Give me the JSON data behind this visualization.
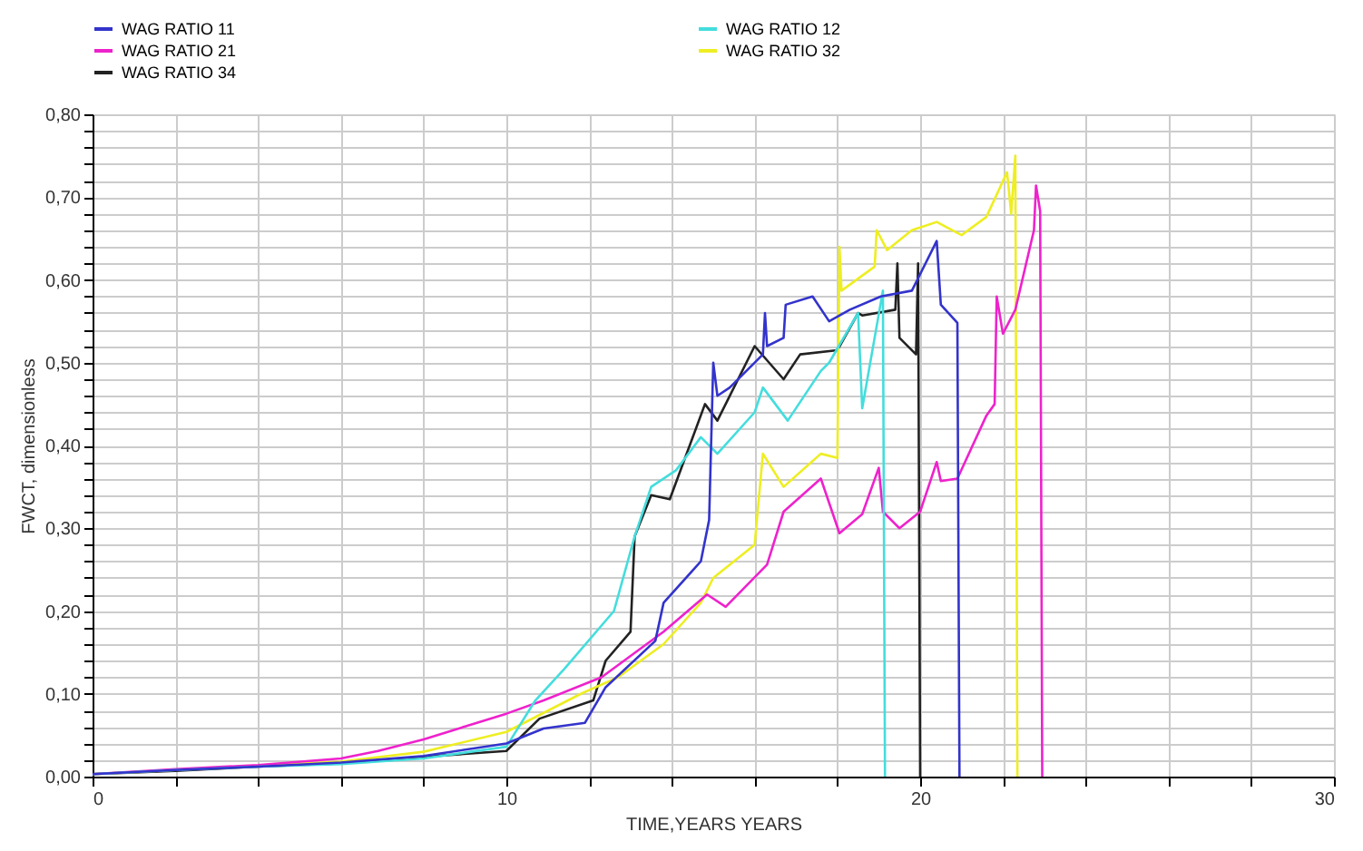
{
  "chart_data": {
    "type": "line",
    "xlabel": "TIME,YEARS   YEARS",
    "ylabel": "FWCT, dimensionless",
    "xlim": [
      0,
      30
    ],
    "ylim": [
      0,
      0.8
    ],
    "xticks": [
      0,
      {
        "value": 2,
        "label": null
      },
      {
        "value": 4,
        "label": null
      },
      {
        "value": 6,
        "label": null
      },
      {
        "value": 8,
        "label": null
      },
      10,
      {
        "value": 12,
        "label": null
      },
      {
        "value": 14,
        "label": null
      },
      {
        "value": 16,
        "label": null
      },
      {
        "value": 18,
        "label": null
      },
      20,
      {
        "value": 22,
        "label": null
      },
      {
        "value": 24,
        "label": null
      },
      {
        "value": 26,
        "label": null
      },
      {
        "value": 28,
        "label": null
      },
      30
    ],
    "yticks": [
      {
        "value": 0,
        "label": "0,00"
      },
      {
        "value": 0.02,
        "label": null
      },
      {
        "value": 0.04,
        "label": null
      },
      {
        "value": 0.06,
        "label": null
      },
      {
        "value": 0.08,
        "label": null
      },
      {
        "value": 0.1,
        "label": "0,10"
      },
      {
        "value": 0.12,
        "label": null
      },
      {
        "value": 0.14,
        "label": null
      },
      {
        "value": 0.16,
        "label": null
      },
      {
        "value": 0.18,
        "label": null
      },
      {
        "value": 0.2,
        "label": "0,20"
      },
      {
        "value": 0.22,
        "label": null
      },
      {
        "value": 0.24,
        "label": null
      },
      {
        "value": 0.26,
        "label": null
      },
      {
        "value": 0.28,
        "label": null
      },
      {
        "value": 0.3,
        "label": "0,30"
      },
      {
        "value": 0.32,
        "label": null
      },
      {
        "value": 0.34,
        "label": null
      },
      {
        "value": 0.36,
        "label": null
      },
      {
        "value": 0.38,
        "label": null
      },
      {
        "value": 0.4,
        "label": "0,40"
      },
      {
        "value": 0.42,
        "label": null
      },
      {
        "value": 0.44,
        "label": null
      },
      {
        "value": 0.46,
        "label": null
      },
      {
        "value": 0.48,
        "label": null
      },
      {
        "value": 0.5,
        "label": "0,50"
      },
      {
        "value": 0.52,
        "label": null
      },
      {
        "value": 0.54,
        "label": null
      },
      {
        "value": 0.56,
        "label": null
      },
      {
        "value": 0.58,
        "label": null
      },
      {
        "value": 0.6,
        "label": "0,60"
      },
      {
        "value": 0.62,
        "label": null
      },
      {
        "value": 0.64,
        "label": null
      },
      {
        "value": 0.66,
        "label": null
      },
      {
        "value": 0.68,
        "label": null
      },
      {
        "value": 0.7,
        "label": "0,70"
      },
      {
        "value": 0.72,
        "label": null
      },
      {
        "value": 0.74,
        "label": null
      },
      {
        "value": 0.76,
        "label": null
      },
      {
        "value": 0.78,
        "label": null
      },
      {
        "value": 0.8,
        "label": "0,80"
      }
    ],
    "grid": true,
    "legend": "top",
    "marker": "none",
    "line_style": "solid",
    "series": [
      {
        "name": "WAG RATIO 11",
        "color": "#3333cc",
        "x": [
          0,
          2,
          4,
          6,
          8,
          10,
          10.9,
          11.9,
          12.4,
          13.6,
          13.8,
          14.7,
          14.9,
          15.0,
          15.1,
          15.4,
          16.2,
          16.25,
          16.3,
          16.7,
          16.75,
          17.4,
          17.8,
          18.3,
          19.05,
          19.8,
          20.4,
          20.5,
          20.9,
          20.95
        ],
        "values": [
          0.003,
          0.008,
          0.012,
          0.017,
          0.025,
          0.04,
          0.058,
          0.065,
          0.108,
          0.164,
          0.21,
          0.26,
          0.31,
          0.5,
          0.46,
          0.47,
          0.51,
          0.56,
          0.52,
          0.53,
          0.57,
          0.58,
          0.55,
          0.564,
          0.58,
          0.587,
          0.647,
          0.57,
          0.548,
          0
        ]
      },
      {
        "name": "WAG RATIO 12",
        "color": "#44dddd",
        "x": [
          0,
          2,
          4,
          6,
          8,
          10,
          10.7,
          11.4,
          12.6,
          13.1,
          13.5,
          14.1,
          14.7,
          15.1,
          16.0,
          16.2,
          16.8,
          17.6,
          17.8,
          18.5,
          18.6,
          19.1,
          19.15
        ],
        "values": [
          0.003,
          0.008,
          0.012,
          0.015,
          0.022,
          0.036,
          0.092,
          0.13,
          0.2,
          0.29,
          0.35,
          0.37,
          0.41,
          0.39,
          0.44,
          0.47,
          0.43,
          0.49,
          0.5,
          0.56,
          0.445,
          0.587,
          0
        ]
      },
      {
        "name": "WAG RATIO 21",
        "color": "#ee22cc",
        "x": [
          0,
          2,
          4,
          6,
          6.9,
          8,
          10,
          10.9,
          12.3,
          13.8,
          14.85,
          15.3,
          16.3,
          16.7,
          17.6,
          18.05,
          18.6,
          19.0,
          19.1,
          19.5,
          20.0,
          20.4,
          20.5,
          20.9,
          21.6,
          21.8,
          21.85,
          22.0,
          22.3,
          22.75,
          22.8,
          22.9,
          22.95
        ],
        "values": [
          0.003,
          0.009,
          0.014,
          0.022,
          0.031,
          0.045,
          0.076,
          0.092,
          0.12,
          0.175,
          0.22,
          0.205,
          0.256,
          0.32,
          0.36,
          0.294,
          0.317,
          0.373,
          0.32,
          0.3,
          0.32,
          0.38,
          0.357,
          0.36,
          0.436,
          0.45,
          0.58,
          0.535,
          0.564,
          0.66,
          0.714,
          0.683,
          0
        ]
      },
      {
        "name": "WAG RATIO 32",
        "color": "#eeee22",
        "x": [
          0,
          2,
          4,
          6,
          8,
          10,
          11.8,
          12.7,
          13.8,
          14.7,
          15.0,
          16.0,
          16.2,
          16.7,
          17.6,
          18.0,
          18.05,
          18.1,
          18.9,
          18.95,
          19.2,
          19.8,
          20.4,
          21.0,
          21.6,
          22.1,
          22.2,
          22.3,
          22.35
        ],
        "values": [
          0.003,
          0.008,
          0.013,
          0.018,
          0.03,
          0.054,
          0.1,
          0.12,
          0.16,
          0.21,
          0.24,
          0.28,
          0.39,
          0.35,
          0.39,
          0.385,
          0.64,
          0.587,
          0.616,
          0.66,
          0.636,
          0.66,
          0.67,
          0.654,
          0.676,
          0.73,
          0.68,
          0.75,
          0
        ]
      },
      {
        "name": "WAG RATIO 34",
        "color": "#222222",
        "x": [
          0,
          2,
          4,
          6,
          8,
          10,
          10.8,
          12.1,
          12.4,
          13.0,
          13.1,
          13.5,
          13.95,
          14.8,
          15.1,
          16.0,
          16.7,
          17.1,
          18.0,
          18.5,
          18.6,
          19.4,
          19.45,
          19.5,
          19.9,
          19.95,
          20.0
        ],
        "values": [
          0.003,
          0.007,
          0.012,
          0.016,
          0.024,
          0.031,
          0.07,
          0.092,
          0.14,
          0.175,
          0.29,
          0.34,
          0.335,
          0.45,
          0.43,
          0.52,
          0.48,
          0.51,
          0.515,
          0.56,
          0.557,
          0.564,
          0.62,
          0.53,
          0.51,
          0.62,
          0
        ]
      }
    ]
  }
}
